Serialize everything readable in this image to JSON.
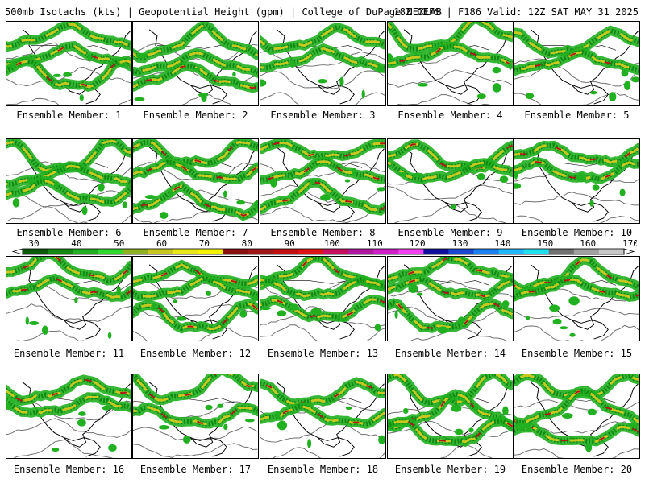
{
  "header": {
    "left": "500mb Isotachs (kts) | Geopotential Height (gpm) | College of DuPage NEXLAB",
    "right": "18Z GEFS | F186 Valid: 12Z SAT MAY 31 2025"
  },
  "panels": [
    {
      "label": "Ensemble Member: 1"
    },
    {
      "label": "Ensemble Member: 2"
    },
    {
      "label": "Ensemble Member: 3"
    },
    {
      "label": "Ensemble Member: 4"
    },
    {
      "label": "Ensemble Member: 5"
    },
    {
      "label": "Ensemble Member: 6"
    },
    {
      "label": "Ensemble Member: 7"
    },
    {
      "label": "Ensemble Member: 8"
    },
    {
      "label": "Ensemble Member: 9"
    },
    {
      "label": "Ensemble Member: 10"
    },
    {
      "label": "Ensemble Member: 11"
    },
    {
      "label": "Ensemble Member: 12"
    },
    {
      "label": "Ensemble Member: 13"
    },
    {
      "label": "Ensemble Member: 14"
    },
    {
      "label": "Ensemble Member: 15"
    },
    {
      "label": "Ensemble Member: 16"
    },
    {
      "label": "Ensemble Member: 17"
    },
    {
      "label": "Ensemble Member: 18"
    },
    {
      "label": "Ensemble Member: 19"
    },
    {
      "label": "Ensemble Member: 20"
    }
  ],
  "colorbar": {
    "ticks": [
      "30",
      "40",
      "50",
      "60",
      "70",
      "80",
      "90",
      "100",
      "110",
      "120",
      "130",
      "140",
      "150",
      "160",
      "170"
    ],
    "colors": [
      "#0a5a0a",
      "#148a14",
      "#22b022",
      "#2fd82f",
      "#8fb020",
      "#c8c820",
      "#e8e818",
      "#f4f400",
      "#8b1010",
      "#a01818",
      "#c01010",
      "#e01414",
      "#c81060",
      "#b018a0",
      "#d020c8",
      "#f040f0",
      "#1010a0",
      "#1848d0",
      "#1c80f0",
      "#20b8ff",
      "#20e0f0",
      "#707070",
      "#a0a0a0",
      "#c8c8c8"
    ]
  },
  "map_colors": {
    "low_wind": "#20b020",
    "mid_wind": "#c8c820",
    "high_wind": "#b01818",
    "height_contour": "#707070",
    "coast": "#000000"
  }
}
